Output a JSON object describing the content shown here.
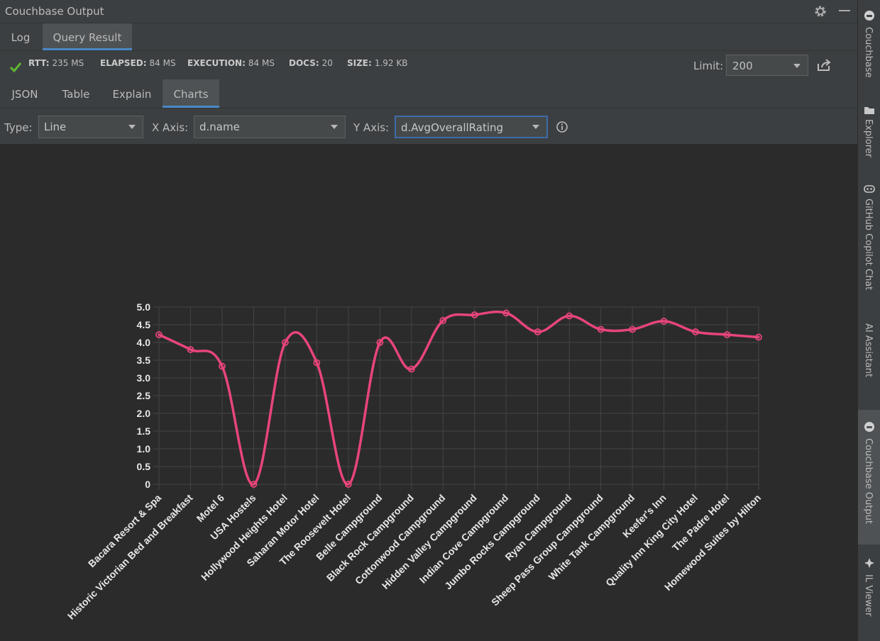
{
  "window": {
    "title": "Couchbase Output"
  },
  "tabs": [
    {
      "label": "Log"
    },
    {
      "label": "Query Result"
    }
  ],
  "stats": {
    "rtt_label": "RTT:",
    "rtt": "235 MS",
    "elapsed_label": "ELAPSED:",
    "elapsed": "84 MS",
    "execution_label": "EXECUTION:",
    "execution": "84 MS",
    "docs_label": "DOCS:",
    "docs": "20",
    "size_label": "SIZE:",
    "size": "1.92 KB"
  },
  "limit": {
    "label": "Limit:",
    "value": "200"
  },
  "result_tabs": [
    {
      "label": "JSON"
    },
    {
      "label": "Table"
    },
    {
      "label": "Explain"
    },
    {
      "label": "Charts"
    }
  ],
  "chart_controls": {
    "type_label": "Type:",
    "type_value": "Line",
    "x_label": "X Axis:",
    "x_value": "d.name",
    "y_label": "Y Axis:",
    "y_value": "d.AvgOverallRating"
  },
  "sidebar": {
    "items": [
      {
        "label": "Couchbase"
      },
      {
        "label": "Explorer"
      },
      {
        "label": "GitHub Copilot Chat"
      },
      {
        "label": "AI Assistant"
      },
      {
        "label": "Couchbase Output"
      },
      {
        "label": "IL Viewer"
      }
    ]
  },
  "colors": {
    "series": "#e8457a",
    "accent": "#4a88c7",
    "check": "#5fb832"
  },
  "chart_data": {
    "type": "line",
    "categories": [
      "Bacara Resort & Spa",
      "Historic Victorian Bed and Breakfast",
      "Motel 6",
      "USA Hostels",
      "Hollywood Heights Hotel",
      "Saharan Motor Hotel",
      "The Roosevelt Hotel",
      "Belle Campground",
      "Black Rock Campground",
      "Cottonwood Campground",
      "Hidden Valley Campground",
      "Indian Cove Campground",
      "Jumbo Rocks Campground",
      "Ryan Campground",
      "Sheep Pass Group Campground",
      "White Tank Campground",
      "Keefer's Inn",
      "Quality Inn King City Hotel",
      "The Padre Hotel",
      "Homewood Suites by Hilton"
    ],
    "values": [
      4.22,
      3.8,
      3.33,
      0,
      4.0,
      3.43,
      0,
      4.0,
      3.25,
      4.62,
      4.78,
      4.83,
      4.3,
      4.75,
      4.37,
      4.37,
      4.6,
      4.3,
      4.22,
      4.15
    ],
    "yticks": [
      "0",
      "0.5",
      "1.0",
      "1.5",
      "2.0",
      "2.5",
      "3.0",
      "3.5",
      "4.0",
      "4.5",
      "5.0"
    ],
    "ylim": [
      0,
      5
    ],
    "grid": true
  }
}
